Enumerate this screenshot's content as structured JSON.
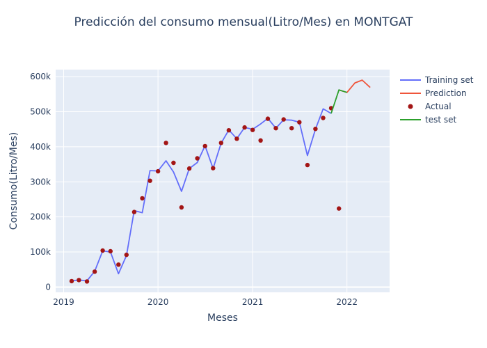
{
  "chart_data": {
    "type": "line",
    "title": "Predicción del consumo mensual(Litro/Mes) en MONTGAT",
    "xlabel": "Meses",
    "ylabel": "Consumo(Litro/Mes)",
    "xlim": [
      "2018-12-01",
      "2022-06-15"
    ],
    "ylim": [
      -15000,
      620000
    ],
    "grid": true,
    "legend_position": "top-right",
    "x_ticks": [
      {
        "label": "2019",
        "date": "2019-01-01"
      },
      {
        "label": "2020",
        "date": "2020-01-01"
      },
      {
        "label": "2021",
        "date": "2021-01-01"
      },
      {
        "label": "2022",
        "date": "2022-01-01"
      }
    ],
    "y_ticks": [
      {
        "label": "0",
        "value": 0
      },
      {
        "label": "100k",
        "value": 100000
      },
      {
        "label": "200k",
        "value": 200000
      },
      {
        "label": "300k",
        "value": 300000
      },
      {
        "label": "400k",
        "value": 400000
      },
      {
        "label": "500k",
        "value": 500000
      },
      {
        "label": "600k",
        "value": 600000
      }
    ],
    "series": [
      {
        "name": "Training set",
        "kind": "line",
        "color": "#636efa",
        "points": [
          [
            "2019-02-01",
            18000
          ],
          [
            "2019-03-01",
            20000
          ],
          [
            "2019-04-01",
            18000
          ],
          [
            "2019-05-01",
            45000
          ],
          [
            "2019-06-01",
            103000
          ],
          [
            "2019-07-01",
            100000
          ],
          [
            "2019-08-01",
            38000
          ],
          [
            "2019-09-01",
            90000
          ],
          [
            "2019-10-01",
            218000
          ],
          [
            "2019-11-01",
            212000
          ],
          [
            "2019-12-01",
            332000
          ],
          [
            "2020-01-01",
            331000
          ],
          [
            "2020-02-01",
            360000
          ],
          [
            "2020-03-01",
            328000
          ],
          [
            "2020-04-01",
            273000
          ],
          [
            "2020-05-01",
            338000
          ],
          [
            "2020-06-01",
            355000
          ],
          [
            "2020-07-01",
            403000
          ],
          [
            "2020-08-01",
            338000
          ],
          [
            "2020-09-01",
            410000
          ],
          [
            "2020-10-01",
            448000
          ],
          [
            "2020-11-01",
            423000
          ],
          [
            "2020-12-01",
            455000
          ],
          [
            "2021-01-01",
            450000
          ],
          [
            "2021-02-01",
            465000
          ],
          [
            "2021-03-01",
            481000
          ],
          [
            "2021-04-01",
            453000
          ],
          [
            "2021-05-01",
            477000
          ],
          [
            "2021-06-01",
            476000
          ],
          [
            "2021-07-01",
            470000
          ],
          [
            "2021-08-01",
            375000
          ],
          [
            "2021-09-01",
            450000
          ],
          [
            "2021-10-01",
            508000
          ],
          [
            "2021-11-01",
            495000
          ]
        ]
      },
      {
        "name": "Prediction",
        "kind": "line",
        "color": "#ef553b",
        "points": [
          [
            "2021-12-01",
            562000
          ],
          [
            "2022-01-01",
            555000
          ],
          [
            "2022-02-01",
            582000
          ],
          [
            "2022-03-01",
            590000
          ],
          [
            "2022-04-01",
            569000
          ]
        ]
      },
      {
        "name": "Actual",
        "kind": "markers",
        "color": "#a31515",
        "points": [
          [
            "2019-02-01",
            17000
          ],
          [
            "2019-03-01",
            20000
          ],
          [
            "2019-04-01",
            16000
          ],
          [
            "2019-05-01",
            44000
          ],
          [
            "2019-06-01",
            104000
          ],
          [
            "2019-07-01",
            102000
          ],
          [
            "2019-08-01",
            64000
          ],
          [
            "2019-09-01",
            92000
          ],
          [
            "2019-10-01",
            214000
          ],
          [
            "2019-11-01",
            253000
          ],
          [
            "2019-12-01",
            303000
          ],
          [
            "2020-01-01",
            330000
          ],
          [
            "2020-02-01",
            411000
          ],
          [
            "2020-03-01",
            354000
          ],
          [
            "2020-04-01",
            227000
          ],
          [
            "2020-05-01",
            338000
          ],
          [
            "2020-06-01",
            367000
          ],
          [
            "2020-07-01",
            402000
          ],
          [
            "2020-08-01",
            339000
          ],
          [
            "2020-09-01",
            411000
          ],
          [
            "2020-10-01",
            447000
          ],
          [
            "2020-11-01",
            423000
          ],
          [
            "2020-12-01",
            455000
          ],
          [
            "2021-01-01",
            448000
          ],
          [
            "2021-02-01",
            418000
          ],
          [
            "2021-03-01",
            480000
          ],
          [
            "2021-04-01",
            453000
          ],
          [
            "2021-05-01",
            478000
          ],
          [
            "2021-06-01",
            453000
          ],
          [
            "2021-07-01",
            470000
          ],
          [
            "2021-08-01",
            348000
          ],
          [
            "2021-09-01",
            451000
          ],
          [
            "2021-10-01",
            482000
          ],
          [
            "2021-11-01",
            510000
          ],
          [
            "2021-12-01",
            224000
          ]
        ]
      },
      {
        "name": "test set",
        "kind": "line",
        "color": "#2ca02c",
        "points": [
          [
            "2021-11-01",
            495000
          ],
          [
            "2021-12-01",
            562000
          ],
          [
            "2022-01-01",
            555000
          ]
        ]
      }
    ]
  }
}
